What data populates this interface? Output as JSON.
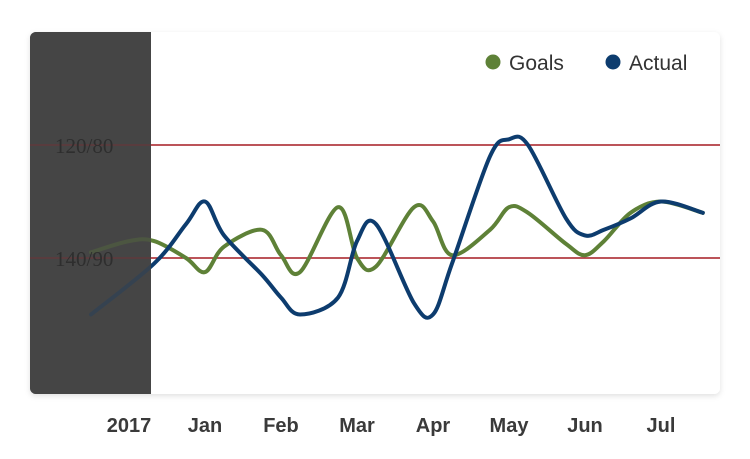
{
  "chart_data": {
    "type": "line",
    "categories": [
      "2017",
      "Jan",
      "Feb",
      "Mar",
      "Apr",
      "May",
      "Jun",
      "Jul"
    ],
    "reference_lines": [
      {
        "label": "120/80",
        "value": 120
      },
      {
        "label": "140/90",
        "value": 140
      }
    ],
    "ylim": [
      100,
      160
    ],
    "y_inverted": true,
    "legend_position": "top-right",
    "grid": false,
    "series": [
      {
        "name": "Goals",
        "color": "#5e8137",
        "x": [
          -0.5,
          0.0,
          0.33,
          0.75,
          1.0,
          1.25,
          1.75,
          2.0,
          2.25,
          2.75,
          3.0,
          3.25,
          3.75,
          4.0,
          4.25,
          4.75,
          5.0,
          5.25,
          5.75,
          6.0,
          6.25,
          6.6,
          7.0,
          7.55
        ],
        "values": [
          139.0,
          137.0,
          137.0,
          140.0,
          142.5,
          138.0,
          135.0,
          139.5,
          142.5,
          131.0,
          140.0,
          141.5,
          131.0,
          133.5,
          139.5,
          135.0,
          131.0,
          132.0,
          137.5,
          139.5,
          137.0,
          132.0,
          130.0,
          132.0
        ]
      },
      {
        "name": "Actual",
        "color": "#0d3c6e",
        "x": [
          -0.5,
          0.33,
          0.75,
          1.0,
          1.25,
          1.75,
          2.0,
          2.25,
          2.75,
          3.0,
          3.25,
          3.75,
          4.0,
          4.25,
          4.75,
          5.0,
          5.25,
          5.75,
          6.0,
          6.25,
          6.6,
          7.0,
          7.55
        ],
        "values": [
          150.0,
          141.0,
          134.0,
          130.0,
          136.0,
          143.0,
          147.0,
          150.0,
          147.0,
          137.0,
          134.0,
          148.0,
          150.0,
          141.0,
          122.0,
          119.0,
          120.0,
          133.0,
          136.0,
          135.0,
          133.0,
          130.0,
          132.0
        ]
      }
    ]
  }
}
